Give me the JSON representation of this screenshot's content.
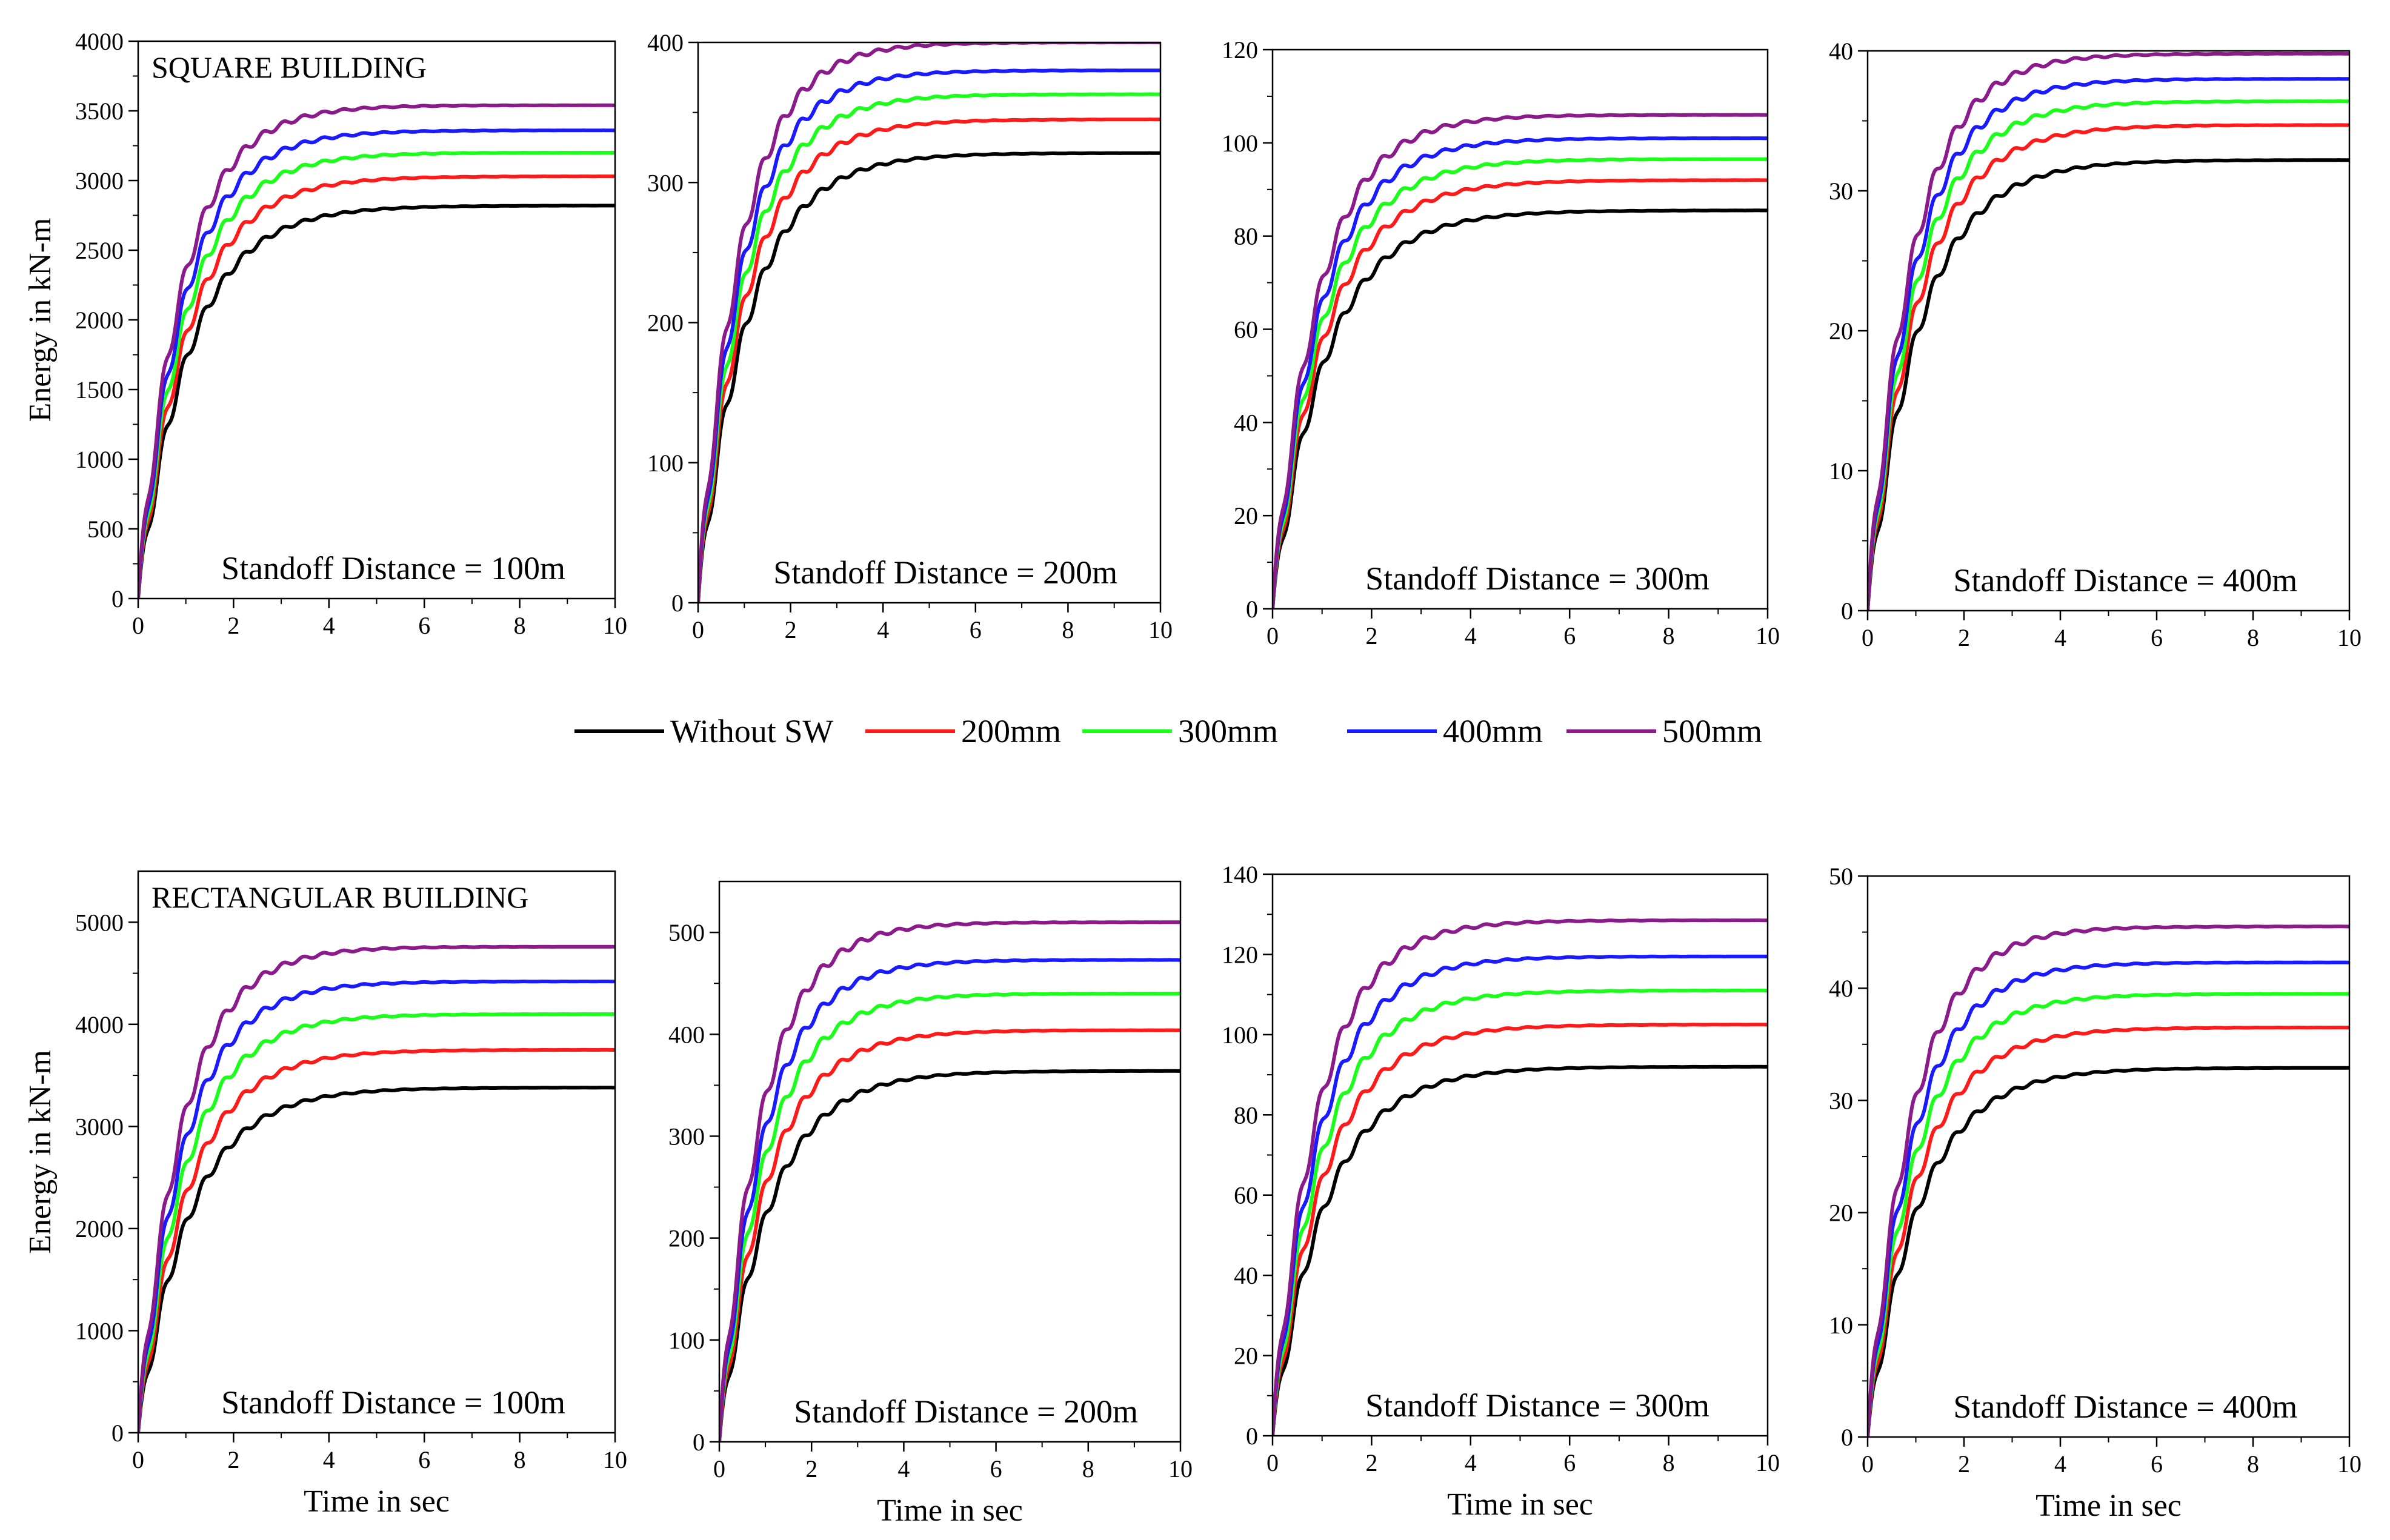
{
  "legend": {
    "entries": [
      {
        "label": "Without SW",
        "color": "#000000"
      },
      {
        "label": "200mm",
        "color": "#ff1a1a"
      },
      {
        "label": "300mm",
        "color": "#1aff1a"
      },
      {
        "label": "400mm",
        "color": "#1a1aff"
      },
      {
        "label": "500mm",
        "color": "#8b1a8b"
      }
    ]
  },
  "chart_data": [
    {
      "type": "line",
      "title": "SQUARE  BUILDING",
      "annotation": "Standoff Distance = 100m",
      "xlabel": "",
      "ylabel": "Energy in kN-m",
      "xlim": [
        0,
        10
      ],
      "ylim": [
        0,
        4000
      ],
      "xticks": [
        "0",
        "2",
        "4",
        "6",
        "8",
        "10"
      ],
      "yticks": [
        "0",
        "500",
        "1000",
        "1500",
        "2000",
        "2500",
        "3000",
        "3500",
        "4000"
      ],
      "series": [
        {
          "name": "Without SW",
          "final": 2820
        },
        {
          "name": "200mm",
          "final": 3030
        },
        {
          "name": "300mm",
          "final": 3200
        },
        {
          "name": "400mm",
          "final": 3360
        },
        {
          "name": "500mm",
          "final": 3540
        }
      ]
    },
    {
      "type": "line",
      "title": "",
      "annotation": "Standoff Distance = 200m",
      "xlabel": "",
      "ylabel": "",
      "xlim": [
        0,
        10
      ],
      "ylim": [
        0,
        400
      ],
      "xticks": [
        "0",
        "2",
        "4",
        "6",
        "8",
        "10"
      ],
      "yticks": [
        "0",
        "100",
        "200",
        "300",
        "400"
      ],
      "series": [
        {
          "name": "Without SW",
          "final": 321
        },
        {
          "name": "200mm",
          "final": 345
        },
        {
          "name": "300mm",
          "final": 363
        },
        {
          "name": "400mm",
          "final": 380
        },
        {
          "name": "500mm",
          "final": 400
        }
      ]
    },
    {
      "type": "line",
      "title": "",
      "annotation": "Standoff Distance = 300m",
      "xlabel": "",
      "ylabel": "",
      "xlim": [
        0,
        10
      ],
      "ylim": [
        0,
        120
      ],
      "xticks": [
        "0",
        "2",
        "4",
        "6",
        "8",
        "10"
      ],
      "yticks": [
        "0",
        "20",
        "40",
        "60",
        "80",
        "100",
        "120"
      ],
      "series": [
        {
          "name": "Without SW",
          "final": 85.5
        },
        {
          "name": "200mm",
          "final": 92
        },
        {
          "name": "300mm",
          "final": 96.5
        },
        {
          "name": "400mm",
          "final": 101
        },
        {
          "name": "500mm",
          "final": 106
        }
      ]
    },
    {
      "type": "line",
      "title": "",
      "annotation": "Standoff Distance = 400m",
      "xlabel": "",
      "ylabel": "",
      "xlim": [
        0,
        10
      ],
      "ylim": [
        0,
        40
      ],
      "xticks": [
        "0",
        "2",
        "4",
        "6",
        "8",
        "10"
      ],
      "yticks": [
        "0",
        "10",
        "20",
        "30",
        "40"
      ],
      "series": [
        {
          "name": "Without SW",
          "final": 32.2
        },
        {
          "name": "200mm",
          "final": 34.7
        },
        {
          "name": "300mm",
          "final": 36.4
        },
        {
          "name": "400mm",
          "final": 38
        },
        {
          "name": "500mm",
          "final": 39.8
        }
      ]
    },
    {
      "type": "line",
      "title": "RECTANGULAR BUILDING",
      "annotation": "Standoff Distance = 100m",
      "xlabel": "Time in sec",
      "ylabel": "Energy in kN-m",
      "xlim": [
        0,
        10
      ],
      "ylim": [
        0,
        5500
      ],
      "xticks": [
        "0",
        "2",
        "4",
        "6",
        "8",
        "10"
      ],
      "yticks": [
        "0",
        "1000",
        "2000",
        "3000",
        "4000",
        "5000"
      ],
      "series": [
        {
          "name": "Without SW",
          "final": 3380
        },
        {
          "name": "200mm",
          "final": 3750
        },
        {
          "name": "300mm",
          "final": 4100
        },
        {
          "name": "400mm",
          "final": 4420
        },
        {
          "name": "500mm",
          "final": 4760
        }
      ]
    },
    {
      "type": "line",
      "title": "",
      "annotation": "Standoff Distance = 200m",
      "xlabel": "Time in sec",
      "ylabel": "",
      "xlim": [
        0,
        10
      ],
      "ylim": [
        0,
        550
      ],
      "xticks": [
        "0",
        "2",
        "4",
        "6",
        "8",
        "10"
      ],
      "yticks": [
        "0",
        "100",
        "200",
        "300",
        "400",
        "500"
      ],
      "series": [
        {
          "name": "Without SW",
          "final": 364
        },
        {
          "name": "200mm",
          "final": 404
        },
        {
          "name": "300mm",
          "final": 440
        },
        {
          "name": "400mm",
          "final": 473
        },
        {
          "name": "500mm",
          "final": 510
        }
      ]
    },
    {
      "type": "line",
      "title": "",
      "annotation": "Standoff Distance = 300m",
      "xlabel": "Time in sec",
      "ylabel": "",
      "xlim": [
        0,
        10
      ],
      "ylim": [
        0,
        140
      ],
      "xticks": [
        "0",
        "2",
        "4",
        "6",
        "8",
        "10"
      ],
      "yticks": [
        "0",
        "20",
        "40",
        "60",
        "80",
        "100",
        "120",
        "140"
      ],
      "series": [
        {
          "name": "Without SW",
          "final": 92
        },
        {
          "name": "200mm",
          "final": 102.5
        },
        {
          "name": "300mm",
          "final": 111
        },
        {
          "name": "400mm",
          "final": 119.5
        },
        {
          "name": "500mm",
          "final": 128.5
        }
      ]
    },
    {
      "type": "line",
      "title": "",
      "annotation": "Standoff Distance = 400m",
      "xlabel": "Time in sec",
      "ylabel": "",
      "xlim": [
        0,
        10
      ],
      "ylim": [
        0,
        50
      ],
      "xticks": [
        "0",
        "2",
        "4",
        "6",
        "8",
        "10"
      ],
      "yticks": [
        "0",
        "10",
        "20",
        "30",
        "40",
        "50"
      ],
      "series": [
        {
          "name": "Without SW",
          "final": 32.9
        },
        {
          "name": "200mm",
          "final": 36.5
        },
        {
          "name": "300mm",
          "final": 39.5
        },
        {
          "name": "400mm",
          "final": 42.3
        },
        {
          "name": "500mm",
          "final": 45.5
        }
      ]
    }
  ]
}
